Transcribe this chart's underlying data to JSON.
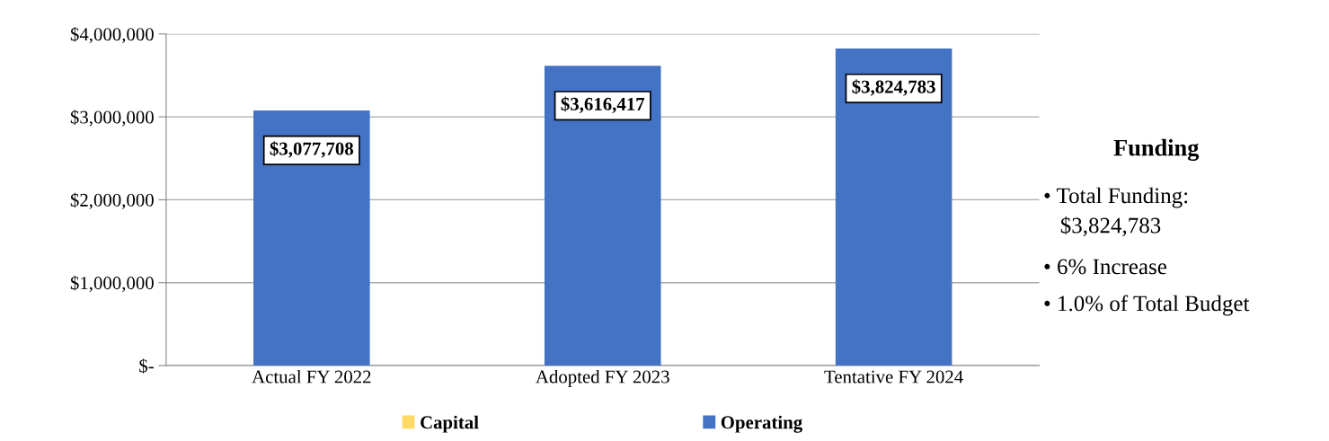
{
  "chart_data": {
    "type": "bar",
    "categories": [
      "Actual FY 2022",
      "Adopted FY 2023",
      "Tentative FY 2024"
    ],
    "series": [
      {
        "name": "Capital",
        "color": "#ffd966",
        "values": [
          0,
          0,
          0
        ]
      },
      {
        "name": "Operating",
        "color": "#4472c4",
        "values": [
          3077708,
          3616417,
          3824783
        ],
        "value_labels": [
          "$3,077,708",
          "$3,616,417",
          "$3,824,783"
        ]
      }
    ],
    "ylim": [
      0,
      4000000
    ],
    "yticks": [
      {
        "value": 0,
        "label": "$-"
      },
      {
        "value": 1000000,
        "label": "$1,000,000"
      },
      {
        "value": 2000000,
        "label": "$2,000,000"
      },
      {
        "value": 3000000,
        "label": "$3,000,000"
      },
      {
        "value": 4000000,
        "label": "$4,000,000"
      }
    ],
    "grid": "y",
    "legend": "bottom",
    "annotations": [
      "Funding",
      "• Total Funding:\n   $3,824,783",
      "• 6% Increase",
      "• 1.0% of Total Budget"
    ]
  }
}
